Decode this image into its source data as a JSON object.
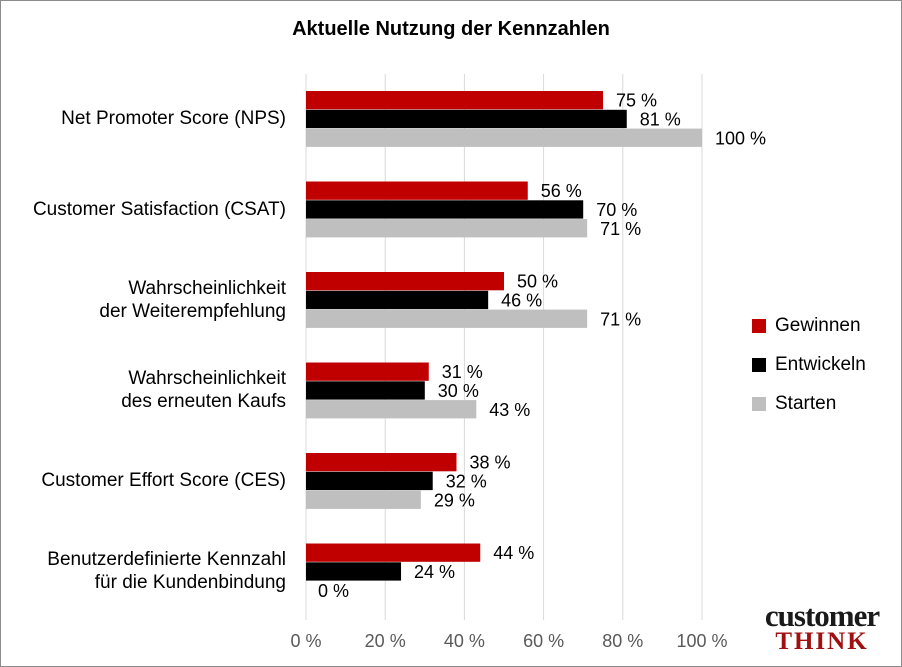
{
  "chart_data": {
    "type": "bar",
    "orientation": "horizontal",
    "title": "Aktuelle Nutzung der Kennzahlen",
    "categories": [
      [
        "Net Promoter Score (NPS)"
      ],
      [
        "Customer Satisfaction (CSAT)"
      ],
      [
        "Wahrscheinlichkeit",
        "der Weiterempfehlung"
      ],
      [
        "Wahrscheinlichkeit",
        "des erneuten Kaufs"
      ],
      [
        "Customer Effort Score (CES)"
      ],
      [
        "Benutzerdefinierte Kennzahl",
        "für die Kundenbindung"
      ]
    ],
    "series": [
      {
        "name": "Gewinnen",
        "color": "#c00000",
        "values": [
          75,
          56,
          50,
          31,
          38,
          44
        ]
      },
      {
        "name": "Entwickeln",
        "color": "#000000",
        "values": [
          81,
          70,
          46,
          30,
          32,
          24
        ]
      },
      {
        "name": "Starten",
        "color": "#bfbfbf",
        "values": [
          100,
          71,
          71,
          43,
          29,
          0
        ]
      }
    ],
    "value_suffix": " %",
    "x_ticks": [
      "0 %",
      "20 %",
      "40 %",
      "60 %",
      "80 %",
      "100 %"
    ],
    "xlim": [
      0,
      100
    ],
    "grid": true,
    "legend_position": "right"
  },
  "logo": {
    "top": "customer",
    "bottom": "THINK"
  }
}
